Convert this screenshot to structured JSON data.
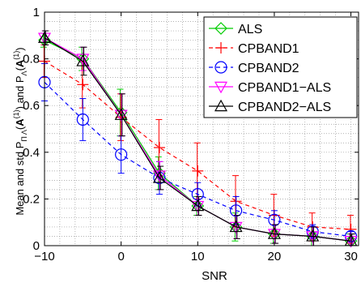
{
  "chart_data": {
    "type": "line",
    "title": "",
    "xlabel": "SNR",
    "ylabel": {
      "prefix": "Mean and std   P",
      "sub1": "Π Λ",
      "mid1": "(",
      "bold1": "A",
      "sup1": "(1)",
      "mid2": ") and P",
      "sub2": "Λ",
      "mid3": "(",
      "bold2": "A",
      "sup2": "(1)",
      "suffix": ")"
    },
    "xlim": [
      -10,
      31
    ],
    "ylim": [
      0,
      1
    ],
    "xticks": [
      -10,
      0,
      10,
      20,
      30
    ],
    "xtick_labels": [
      "−10",
      "0",
      "10",
      "20",
      "30"
    ],
    "yticks": [
      0,
      0.2,
      0.4,
      0.6,
      0.8,
      1
    ],
    "ytick_labels": [
      "0",
      "0.2",
      "0.4",
      "0.6",
      "0.8",
      "1"
    ],
    "grid": "dotted-minor",
    "legend_position": "top-right",
    "x": [
      -10,
      -5,
      0,
      5,
      10,
      15,
      20,
      25,
      30
    ],
    "series": [
      {
        "name": "ALS",
        "color": "#00cc00",
        "linestyle": "solid",
        "marker": "diamond",
        "values": [
          0.88,
          0.8,
          0.57,
          0.31,
          0.17,
          0.08,
          0.05,
          0.04,
          0.02
        ],
        "std": [
          0.03,
          0.05,
          0.1,
          0.07,
          0.04,
          0.06,
          0.04,
          0.04,
          0.03
        ]
      },
      {
        "name": "CPBAND1",
        "color": "#ff0000",
        "linestyle": "dashed",
        "marker": "plus",
        "values": [
          0.79,
          0.69,
          0.55,
          0.42,
          0.32,
          0.19,
          0.13,
          0.08,
          0.07
        ],
        "std": [
          0.07,
          0.1,
          0.1,
          0.12,
          0.12,
          0.11,
          0.09,
          0.06,
          0.06
        ]
      },
      {
        "name": "CPBAND2",
        "color": "#0000ff",
        "linestyle": "dashed",
        "marker": "circle",
        "values": [
          0.7,
          0.54,
          0.39,
          0.29,
          0.22,
          0.15,
          0.11,
          0.06,
          0.04
        ],
        "std": [
          0.08,
          0.09,
          0.08,
          0.07,
          0.05,
          0.06,
          0.04,
          0.03,
          0.02
        ]
      },
      {
        "name": "CPBAND1−ALS",
        "color": "#ff00ff",
        "linestyle": "solid",
        "marker": "triangle-down",
        "values": [
          0.89,
          0.8,
          0.56,
          0.3,
          0.17,
          0.08,
          0.05,
          0.04,
          0.02
        ],
        "std": [
          0.03,
          0.05,
          0.09,
          0.06,
          0.04,
          0.05,
          0.04,
          0.04,
          0.03
        ]
      },
      {
        "name": "CPBAND2−ALS",
        "color": "#000000",
        "linestyle": "solid",
        "marker": "triangle-up",
        "values": [
          0.89,
          0.79,
          0.56,
          0.29,
          0.17,
          0.08,
          0.05,
          0.04,
          0.02
        ],
        "std": [
          0.03,
          0.06,
          0.09,
          0.05,
          0.04,
          0.05,
          0.04,
          0.04,
          0.03
        ]
      }
    ]
  }
}
